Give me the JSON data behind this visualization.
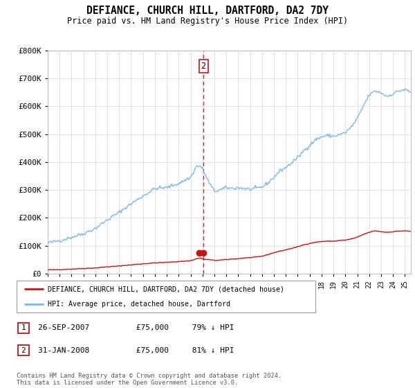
{
  "title": "DEFIANCE, CHURCH HILL, DARTFORD, DA2 7DY",
  "subtitle": "Price paid vs. HM Land Registry's House Price Index (HPI)",
  "legend_label_red": "DEFIANCE, CHURCH HILL, DARTFORD, DA2 7DY (detached house)",
  "legend_label_blue": "HPI: Average price, detached house, Dartford",
  "footer": "Contains HM Land Registry data © Crown copyright and database right 2024.\nThis data is licensed under the Open Government Licence v3.0.",
  "transactions": [
    {
      "num": 1,
      "date": "26-SEP-2007",
      "price": "£75,000",
      "hpi": "79% ↓ HPI",
      "year": 2007.73
    },
    {
      "num": 2,
      "date": "31-JAN-2008",
      "price": "£75,000",
      "hpi": "81% ↓ HPI",
      "year": 2008.08
    }
  ],
  "marker_year": 2008.0,
  "marker_label": "2",
  "ylim": [
    0,
    800000
  ],
  "xlim_start": 1995,
  "xlim_end": 2025.5,
  "colors": {
    "blue_line": "#7ab8e8",
    "red_line": "#cc1111",
    "marker_fill": "#cc1111",
    "dashed_line": "#cc1111",
    "grid": "#dddddd",
    "background": "#ffffff",
    "marker_box_border": "#cc1111"
  }
}
